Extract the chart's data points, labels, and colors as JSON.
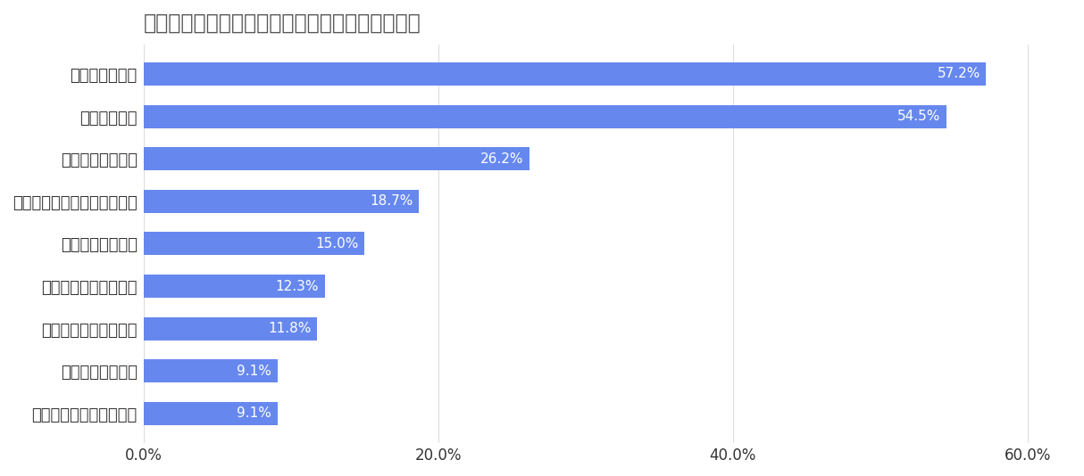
{
  "title": "不登校によって保護者に起きた変化（複数回答）",
  "categories": [
    "子どもを叩いてしまった",
    "死にたいと感じた",
    "とくに変化はなかった",
    "子どもを嫌いになった",
    "精神科を受診した",
    "仕事をやめざるを得なかった",
    "体調不良になった",
    "孤独を感じた",
    "気分の落ち込み"
  ],
  "values": [
    9.1,
    9.1,
    11.8,
    12.3,
    15.0,
    18.7,
    26.2,
    54.5,
    57.2
  ],
  "bar_color": "#6688ee",
  "background_color": "#ffffff",
  "xlim": [
    0,
    63
  ],
  "xticks": [
    0,
    20,
    40,
    60
  ],
  "xticklabels": [
    "0.0%",
    "20.0%",
    "40.0%",
    "60.0%"
  ],
  "title_fontsize": 17,
  "label_fontsize": 13,
  "value_fontsize": 11,
  "tick_fontsize": 12,
  "title_color": "#555555",
  "label_color": "#333333",
  "grid_color": "#dddddd",
  "bar_height": 0.55
}
